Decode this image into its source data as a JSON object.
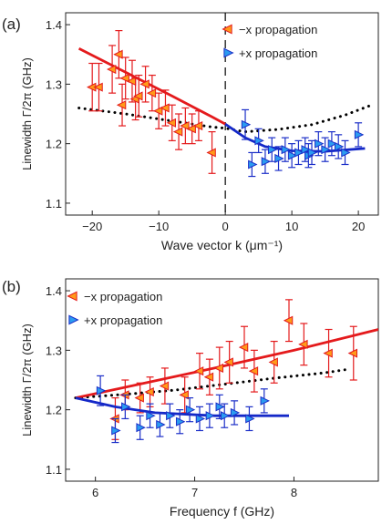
{
  "colors": {
    "minus_marker_fill": "#ff9a1a",
    "minus_marker_stroke": "#e41a1c",
    "minus_fit": "#e41a1c",
    "plus_marker_fill": "#2b9bf0",
    "plus_marker_stroke": "#1c2fc8",
    "plus_fit": "#1428c8",
    "model_dotted": "#000000",
    "axis": "#222222"
  },
  "chart_data": [
    {
      "panel_label": "(a)",
      "type": "scatter",
      "xlabel": "Wave vector k (μm⁻¹)",
      "ylabel": "Linewidth Γ/2π (GHz)",
      "xlim": [
        -24,
        23
      ],
      "ylim": [
        1.08,
        1.42
      ],
      "xticks": [
        -20,
        -10,
        0,
        10,
        20
      ],
      "yticks": [
        1.1,
        1.2,
        1.3,
        1.4
      ],
      "vertical_dashed_line_x": 0,
      "legend_position": "top-right",
      "series": [
        {
          "name": "−x propagation",
          "marker": "triangle-left",
          "points": [
            {
              "x": -20,
              "y": 1.295,
              "err": 0.04
            },
            {
              "x": -19,
              "y": 1.295,
              "err": 0.04
            },
            {
              "x": -17,
              "y": 1.325,
              "err": 0.04
            },
            {
              "x": -16,
              "y": 1.35,
              "err": 0.04
            },
            {
              "x": -15.5,
              "y": 1.265,
              "err": 0.035
            },
            {
              "x": -15,
              "y": 1.31,
              "err": 0.035
            },
            {
              "x": -14,
              "y": 1.305,
              "err": 0.035
            },
            {
              "x": -13.5,
              "y": 1.275,
              "err": 0.035
            },
            {
              "x": -13,
              "y": 1.28,
              "err": 0.035
            },
            {
              "x": -12,
              "y": 1.3,
              "err": 0.03
            },
            {
              "x": -11,
              "y": 1.285,
              "err": 0.03
            },
            {
              "x": -10,
              "y": 1.255,
              "err": 0.03
            },
            {
              "x": -9,
              "y": 1.26,
              "err": 0.03
            },
            {
              "x": -8,
              "y": 1.235,
              "err": 0.03
            },
            {
              "x": -7,
              "y": 1.22,
              "err": 0.03
            },
            {
              "x": -6,
              "y": 1.23,
              "err": 0.03
            },
            {
              "x": -5,
              "y": 1.225,
              "err": 0.025
            },
            {
              "x": -4,
              "y": 1.23,
              "err": 0.025
            },
            {
              "x": -2,
              "y": 1.185,
              "err": 0.035
            }
          ],
          "fit": [
            [
              -22,
              1.36
            ],
            [
              -15,
              1.32
            ],
            [
              -8,
              1.28
            ],
            [
              -2,
              1.245
            ],
            [
              0,
              1.233
            ]
          ]
        },
        {
          "name": "+x propagation",
          "marker": "triangle-right",
          "points": [
            {
              "x": 3,
              "y": 1.232,
              "err": 0.025
            },
            {
              "x": 4,
              "y": 1.165,
              "err": 0.02
            },
            {
              "x": 5,
              "y": 1.205,
              "err": 0.02
            },
            {
              "x": 6,
              "y": 1.17,
              "err": 0.02
            },
            {
              "x": 7,
              "y": 1.19,
              "err": 0.02
            },
            {
              "x": 8,
              "y": 1.175,
              "err": 0.02
            },
            {
              "x": 9,
              "y": 1.19,
              "err": 0.02
            },
            {
              "x": 10,
              "y": 1.18,
              "err": 0.02
            },
            {
              "x": 11,
              "y": 1.185,
              "err": 0.02
            },
            {
              "x": 12,
              "y": 1.19,
              "err": 0.02
            },
            {
              "x": 12.5,
              "y": 1.18,
              "err": 0.02
            },
            {
              "x": 13,
              "y": 1.185,
              "err": 0.02
            },
            {
              "x": 14,
              "y": 1.2,
              "err": 0.02
            },
            {
              "x": 15,
              "y": 1.19,
              "err": 0.02
            },
            {
              "x": 16,
              "y": 1.2,
              "err": 0.02
            },
            {
              "x": 17,
              "y": 1.195,
              "err": 0.02
            },
            {
              "x": 18,
              "y": 1.185,
              "err": 0.02
            },
            {
              "x": 20,
              "y": 1.215,
              "err": 0.02
            }
          ],
          "fit": [
            [
              0,
              1.233
            ],
            [
              3,
              1.21
            ],
            [
              6,
              1.195
            ],
            [
              10,
              1.188
            ],
            [
              15,
              1.187
            ],
            [
              21,
              1.192
            ]
          ]
        }
      ],
      "model_dotted": [
        [
          -22,
          1.26
        ],
        [
          -15,
          1.25
        ],
        [
          -8,
          1.238
        ],
        [
          -2,
          1.228
        ],
        [
          0,
          1.226
        ],
        [
          3,
          1.22
        ],
        [
          8,
          1.224
        ],
        [
          13,
          1.232
        ],
        [
          18,
          1.248
        ],
        [
          22,
          1.265
        ]
      ]
    },
    {
      "panel_label": "(b)",
      "type": "scatter",
      "xlabel": "Frequency f (GHz)",
      "ylabel": "Linewidth Γ/2π (GHz)",
      "xlim": [
        5.7,
        8.85
      ],
      "ylim": [
        1.08,
        1.42
      ],
      "xticks": [
        6,
        7,
        8
      ],
      "yticks": [
        1.1,
        1.2,
        1.3,
        1.4
      ],
      "legend_position": "top-left",
      "series": [
        {
          "name": "−x propagation",
          "marker": "triangle-left",
          "points": [
            {
              "x": 6.2,
              "y": 1.185,
              "err": 0.035
            },
            {
              "x": 6.3,
              "y": 1.225,
              "err": 0.025
            },
            {
              "x": 6.45,
              "y": 1.22,
              "err": 0.025
            },
            {
              "x": 6.55,
              "y": 1.23,
              "err": 0.025
            },
            {
              "x": 6.7,
              "y": 1.24,
              "err": 0.03
            },
            {
              "x": 6.9,
              "y": 1.225,
              "err": 0.03
            },
            {
              "x": 7.05,
              "y": 1.265,
              "err": 0.03
            },
            {
              "x": 7.15,
              "y": 1.255,
              "err": 0.03
            },
            {
              "x": 7.25,
              "y": 1.27,
              "err": 0.035
            },
            {
              "x": 7.35,
              "y": 1.28,
              "err": 0.035
            },
            {
              "x": 7.5,
              "y": 1.305,
              "err": 0.035
            },
            {
              "x": 7.6,
              "y": 1.265,
              "err": 0.035
            },
            {
              "x": 7.8,
              "y": 1.28,
              "err": 0.035
            },
            {
              "x": 7.95,
              "y": 1.35,
              "err": 0.035
            },
            {
              "x": 8.1,
              "y": 1.31,
              "err": 0.035
            },
            {
              "x": 8.35,
              "y": 1.295,
              "err": 0.04
            },
            {
              "x": 8.6,
              "y": 1.295,
              "err": 0.045
            }
          ],
          "fit": [
            [
              5.8,
              1.22
            ],
            [
              6.5,
              1.245
            ],
            [
              7.2,
              1.27
            ],
            [
              8,
              1.3
            ],
            [
              8.85,
              1.335
            ]
          ]
        },
        {
          "name": "+x propagation",
          "marker": "triangle-right",
          "points": [
            {
              "x": 6.05,
              "y": 1.232,
              "err": 0.025
            },
            {
              "x": 6.2,
              "y": 1.165,
              "err": 0.02
            },
            {
              "x": 6.3,
              "y": 1.205,
              "err": 0.02
            },
            {
              "x": 6.45,
              "y": 1.17,
              "err": 0.02
            },
            {
              "x": 6.55,
              "y": 1.19,
              "err": 0.02
            },
            {
              "x": 6.65,
              "y": 1.175,
              "err": 0.02
            },
            {
              "x": 6.75,
              "y": 1.19,
              "err": 0.02
            },
            {
              "x": 6.85,
              "y": 1.18,
              "err": 0.02
            },
            {
              "x": 6.95,
              "y": 1.2,
              "err": 0.02
            },
            {
              "x": 7.05,
              "y": 1.185,
              "err": 0.02
            },
            {
              "x": 7.15,
              "y": 1.19,
              "err": 0.02
            },
            {
              "x": 7.25,
              "y": 1.205,
              "err": 0.02
            },
            {
              "x": 7.3,
              "y": 1.19,
              "err": 0.02
            },
            {
              "x": 7.4,
              "y": 1.195,
              "err": 0.02
            },
            {
              "x": 7.55,
              "y": 1.185,
              "err": 0.02
            },
            {
              "x": 7.7,
              "y": 1.215,
              "err": 0.02
            }
          ],
          "fit": [
            [
              5.8,
              1.22
            ],
            [
              6.2,
              1.205
            ],
            [
              6.6,
              1.195
            ],
            [
              7.2,
              1.19
            ],
            [
              7.95,
              1.19
            ]
          ]
        }
      ],
      "model_dotted": [
        [
          5.8,
          1.22
        ],
        [
          6.3,
          1.226
        ],
        [
          6.8,
          1.233
        ],
        [
          7.3,
          1.243
        ],
        [
          7.8,
          1.253
        ],
        [
          8.3,
          1.262
        ],
        [
          8.55,
          1.268
        ]
      ]
    }
  ]
}
